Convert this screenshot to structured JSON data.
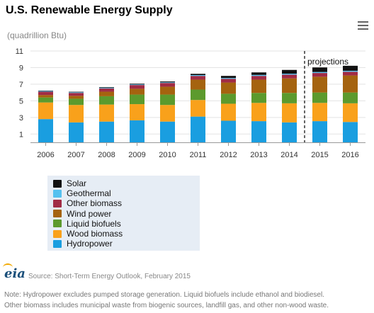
{
  "title": "U.S. Renewable Energy Supply",
  "units": "(quadrillion Btu)",
  "projection_label": "projections",
  "source": "Source: Short-Term Energy Outlook, February 2015",
  "note_line1": "Note: Hydropower excludes pumped storage generation. Liquid biofuels include ethanol and biodiesel.",
  "note_line2": "Other biomass includes municipal waste from biogenic sources, landfill gas, and other non-wood waste.",
  "logo_text": "eia",
  "chart_data": {
    "type": "bar",
    "stacked": true,
    "categories": [
      "2006",
      "2007",
      "2008",
      "2009",
      "2010",
      "2011",
      "2012",
      "2013",
      "2014",
      "2015",
      "2016"
    ],
    "projection_start": "2015",
    "ylim": [
      0,
      11
    ],
    "yticks": [
      1,
      3,
      5,
      7,
      9,
      11
    ],
    "grid": true,
    "legend_position": "bottom-left",
    "series": [
      {
        "name": "Hydropower",
        "color": "#1a9ee0",
        "values": [
          2.8,
          2.4,
          2.5,
          2.65,
          2.5,
          3.1,
          2.6,
          2.55,
          2.4,
          2.55,
          2.45
        ]
      },
      {
        "name": "Wood biomass",
        "color": "#f9a11b",
        "values": [
          2.0,
          2.1,
          2.05,
          1.95,
          2.0,
          2.0,
          2.05,
          2.2,
          2.3,
          2.2,
          2.25
        ]
      },
      {
        "name": "Liquid biofuels",
        "color": "#5c9a2d",
        "values": [
          0.6,
          0.75,
          1.0,
          1.15,
          1.25,
          1.25,
          1.2,
          1.2,
          1.25,
          1.25,
          1.3
        ]
      },
      {
        "name": "Wind power",
        "color": "#a5630f",
        "values": [
          0.3,
          0.35,
          0.55,
          0.7,
          0.95,
          1.2,
          1.35,
          1.6,
          1.75,
          1.9,
          2.05
        ]
      },
      {
        "name": "Other biomass",
        "color": "#a12c45",
        "values": [
          0.4,
          0.35,
          0.4,
          0.45,
          0.45,
          0.45,
          0.45,
          0.45,
          0.45,
          0.45,
          0.45
        ]
      },
      {
        "name": "Geothermal",
        "color": "#55c1ef",
        "values": [
          0.08,
          0.08,
          0.08,
          0.08,
          0.08,
          0.1,
          0.1,
          0.12,
          0.12,
          0.12,
          0.12
        ]
      },
      {
        "name": "Solar",
        "color": "#111111",
        "values": [
          0.05,
          0.06,
          0.07,
          0.08,
          0.1,
          0.15,
          0.25,
          0.3,
          0.45,
          0.55,
          0.6
        ]
      }
    ]
  }
}
